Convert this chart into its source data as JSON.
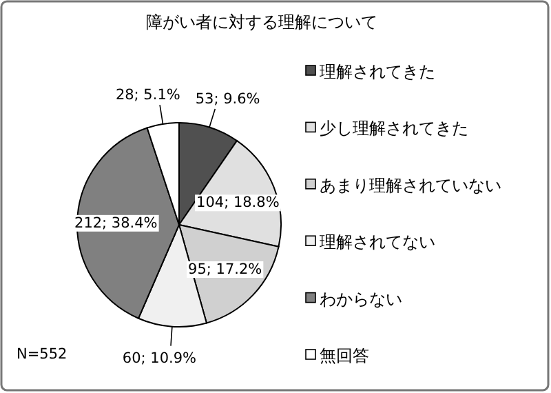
{
  "chart_data": {
    "type": "pie",
    "title": "障がい者に対する理解について",
    "categories": [
      "理解されてきた",
      "少し理解されてきた",
      "あまり理解されていない",
      "理解されてない",
      "わからない",
      "無回答"
    ],
    "values": [
      53,
      104,
      95,
      60,
      212,
      28
    ],
    "value_labels": [
      "53; 9.6%",
      "104; 18.8%",
      "95; 17.2%",
      "60; 10.9%",
      "212; 38.4%",
      "28; 5.1%"
    ],
    "colors": [
      "#505050",
      "#e0e0e0",
      "#d0d0d0",
      "#f0f0f0",
      "#808080",
      "#ffffff"
    ],
    "legend": "right",
    "annotations": [
      "N=552"
    ]
  }
}
